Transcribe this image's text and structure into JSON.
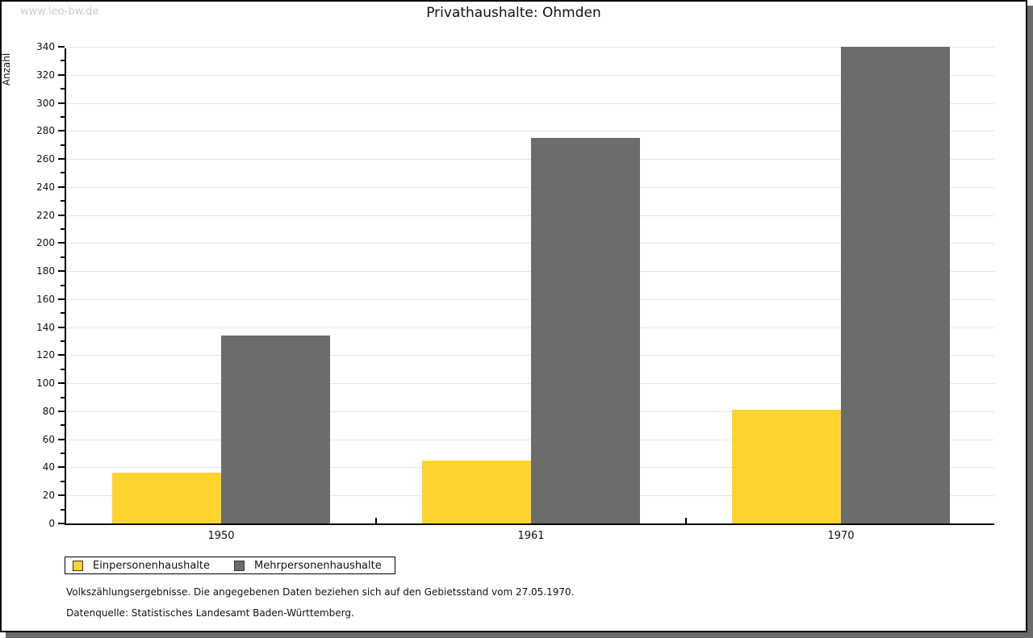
{
  "watermark": "www.leo-bw.de",
  "title": "Privathaushalte: Ohmden",
  "chart_data": {
    "type": "bar",
    "title": "Privathaushalte: Ohmden",
    "xlabel": "",
    "ylabel": "Anzahl",
    "categories": [
      "1950",
      "1961",
      "1970"
    ],
    "series": [
      {
        "name": "Einpersonenhaushalte",
        "color": "#fcd42d",
        "values": [
          36,
          45,
          81
        ]
      },
      {
        "name": "Mehrpersonenhaushalte",
        "color": "#6c6c6c",
        "values": [
          134,
          275,
          340
        ]
      }
    ],
    "ylim": [
      0,
      340
    ],
    "ytick_step": 20,
    "minor_tick_step": 10,
    "grid": true,
    "legend_position": "bottom-left"
  },
  "footnotes": [
    "Volkszählungsergebnisse. Die angegebenen Daten beziehen sich auf den Gebietsstand vom 27.05.1970.",
    "Datenquelle: Statistisches Landesamt Baden-Württemberg."
  ],
  "colors": {
    "bar_yellow": "#fcd42d",
    "bar_gray": "#6c6c6c",
    "gridline": "#e5e5e5",
    "axis": "#000000",
    "watermark": "#cccccc",
    "window_shadow": "#6b6b6b"
  }
}
